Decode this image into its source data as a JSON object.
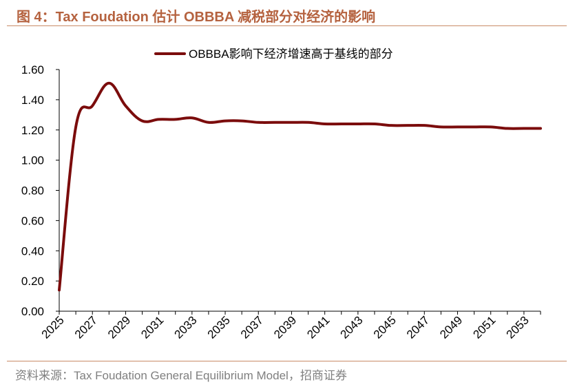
{
  "header": {
    "title": "图 4：Tax Foudation 估计 OBBBA 减税部分对经济的影响"
  },
  "footer": {
    "source": "资料来源：Tax Foudation General Equilibrium Model，招商证券"
  },
  "colors": {
    "series": "#7b0c0c",
    "title": "#b5623f",
    "rule": "#c98a66",
    "source": "#7f7f7f"
  },
  "chart_data": {
    "type": "line",
    "title": "",
    "xlabel": "",
    "ylabel": "",
    "ylim": [
      0,
      1.6
    ],
    "xlim": [
      2025,
      2054
    ],
    "y_ticks": [
      "0.00",
      "0.20",
      "0.40",
      "0.60",
      "0.80",
      "1.00",
      "1.20",
      "1.40",
      "1.60"
    ],
    "x_ticks": [
      "2025",
      "2027",
      "2029",
      "2031",
      "2033",
      "2035",
      "2037",
      "2039",
      "2041",
      "2043",
      "2045",
      "2047",
      "2049",
      "2051",
      "2053"
    ],
    "grid": false,
    "legend": "top-center",
    "series": [
      {
        "name": "OBBBA影响下经济增速高于基线的部分",
        "x": [
          2025,
          2026,
          2027,
          2028,
          2029,
          2030,
          2031,
          2032,
          2033,
          2034,
          2035,
          2036,
          2037,
          2038,
          2039,
          2040,
          2041,
          2042,
          2043,
          2044,
          2045,
          2046,
          2047,
          2048,
          2049,
          2050,
          2051,
          2052,
          2053,
          2054
        ],
        "values": [
          0.14,
          1.22,
          1.36,
          1.51,
          1.36,
          1.26,
          1.27,
          1.27,
          1.28,
          1.25,
          1.26,
          1.26,
          1.25,
          1.25,
          1.25,
          1.25,
          1.24,
          1.24,
          1.24,
          1.24,
          1.23,
          1.23,
          1.23,
          1.22,
          1.22,
          1.22,
          1.22,
          1.21,
          1.21,
          1.21
        ]
      }
    ]
  }
}
